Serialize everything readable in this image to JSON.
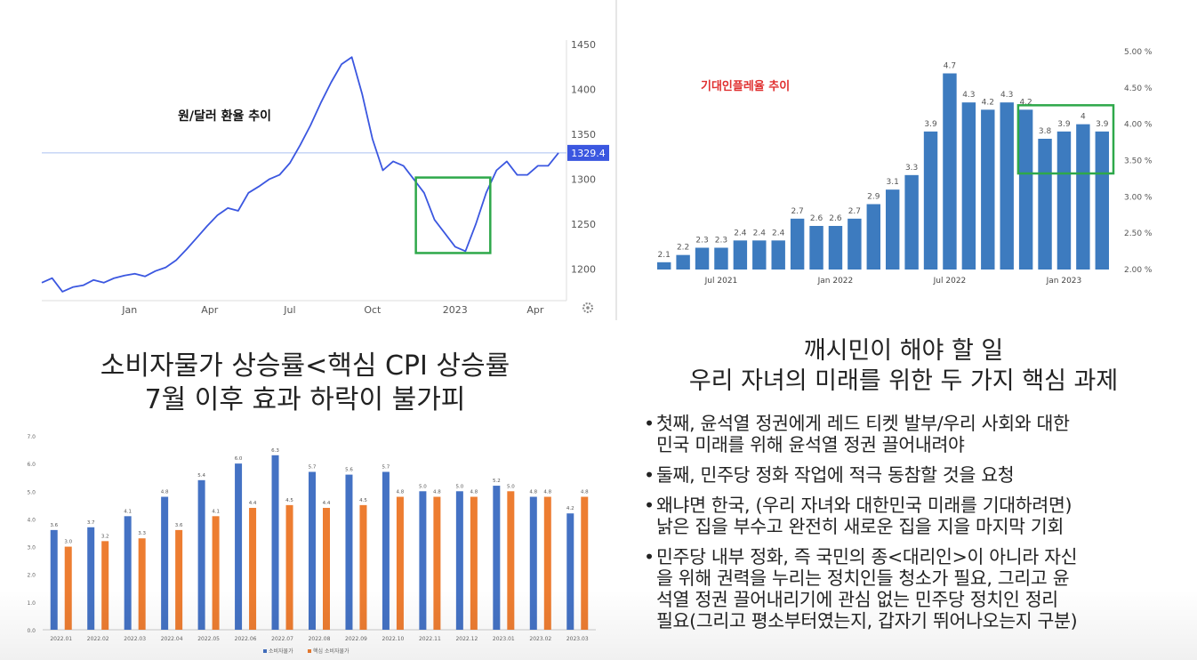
{
  "charts": [
    {
      "type": "line",
      "title": "원/달러 환율 추이",
      "x_ticks": [
        "Jan",
        "Apr",
        "Jul",
        "Oct",
        "2023",
        "Apr"
      ],
      "y_ticks": [
        1200,
        1250,
        1300,
        1350,
        1400,
        1450
      ],
      "ylim": [
        1165,
        1455
      ],
      "current_label": "1329.4",
      "current_value": 1329.4,
      "series_color": "#3b57e0",
      "highlight_color": "#2ea84a",
      "highlight_range": {
        "x": [
          0.724,
          0.868
        ],
        "y": [
          1218,
          1302
        ]
      },
      "chart_data": {
        "type": "line",
        "x": [
          0.0,
          0.02,
          0.04,
          0.06,
          0.08,
          0.1,
          0.12,
          0.14,
          0.16,
          0.18,
          0.2,
          0.22,
          0.24,
          0.26,
          0.28,
          0.3,
          0.32,
          0.34,
          0.36,
          0.38,
          0.4,
          0.42,
          0.44,
          0.46,
          0.48,
          0.5,
          0.52,
          0.54,
          0.56,
          0.58,
          0.6,
          0.62,
          0.64,
          0.66,
          0.68,
          0.7,
          0.72,
          0.74,
          0.76,
          0.78,
          0.8,
          0.82,
          0.84,
          0.86,
          0.88,
          0.9,
          0.92,
          0.94,
          0.96,
          0.98,
          1.0
        ],
        "values": [
          1185,
          1190,
          1175,
          1180,
          1182,
          1188,
          1185,
          1190,
          1193,
          1195,
          1192,
          1198,
          1202,
          1210,
          1222,
          1235,
          1248,
          1260,
          1268,
          1265,
          1285,
          1292,
          1300,
          1305,
          1318,
          1338,
          1360,
          1385,
          1408,
          1428,
          1436,
          1395,
          1345,
          1310,
          1320,
          1315,
          1300,
          1285,
          1255,
          1240,
          1225,
          1220,
          1250,
          1285,
          1310,
          1320,
          1305,
          1305,
          1315,
          1315,
          1329.4
        ]
      }
    },
    {
      "type": "bar",
      "title": "기대인플레율 추이",
      "x_ticks": [
        "Jul 2021",
        "Jan 2022",
        "Jul 2022",
        "Jan 2023"
      ],
      "y_ticks": [
        "2.00 %",
        "2.50 %",
        "3.00 %",
        "3.50 %",
        "4.00 %",
        "4.50 %",
        "5.00 %"
      ],
      "ylim": [
        2.0,
        5.0
      ],
      "bar_color": "#3d7bbf",
      "highlight_color": "#2ea84a",
      "highlight_from_index": 19,
      "chart_data": {
        "type": "bar",
        "values": [
          2.1,
          2.2,
          2.3,
          2.3,
          2.4,
          2.4,
          2.4,
          2.7,
          2.6,
          2.6,
          2.7,
          2.9,
          3.1,
          3.3,
          3.9,
          4.7,
          4.3,
          4.2,
          4.3,
          4.2,
          3.8,
          3.9,
          4,
          3.9
        ],
        "value_labels": [
          "2.1",
          "2.2",
          "2.3",
          "2.3",
          "2.4",
          "2.4",
          "2.4",
          "2.7",
          "2.6",
          "2.6",
          "2.7",
          "2.9",
          "3.1",
          "3.3",
          "3.9",
          "4.7",
          "4.3",
          "4.2",
          "4.3",
          "4.2",
          "3.8",
          "3.9",
          "4",
          "3.9"
        ]
      }
    },
    {
      "type": "bar",
      "title": "소비자물가 상승률<핵심 CPI 상승률 7월 이후 효과 하락이 불가피",
      "title_lines": [
        "소비자물가 상승률<핵심 CPI 상승률",
        "7월 이후 효과 하락이 불가피"
      ],
      "y_ticks": [
        "0.0",
        "1.0",
        "2.0",
        "3.0",
        "4.0",
        "5.0",
        "6.0",
        "7.0"
      ],
      "ylim": [
        0,
        7
      ],
      "chart_data": {
        "type": "bar",
        "categories": [
          "2022.01",
          "2022.02",
          "2022.03",
          "2022.04",
          "2022.05",
          "2022.06",
          "2022.07",
          "2022.08",
          "2022.09",
          "2022.10",
          "2022.11",
          "2022.12",
          "2023.01",
          "2023.02",
          "2023.03"
        ],
        "series": [
          {
            "name": "소비자물가",
            "color": "#4472c4",
            "values": [
              3.6,
              3.7,
              4.1,
              4.8,
              5.4,
              6.0,
              6.3,
              5.7,
              5.6,
              5.7,
              5.0,
              5.0,
              5.2,
              4.8,
              4.2
            ]
          },
          {
            "name": "핵심 소비자물가",
            "color": "#ed7d31",
            "values": [
              3.0,
              3.2,
              3.3,
              3.6,
              4.1,
              4.4,
              4.5,
              4.4,
              4.5,
              4.8,
              4.8,
              4.8,
              5.0,
              4.8,
              4.8
            ]
          }
        ]
      }
    }
  ],
  "text_panel": {
    "heading_lines": [
      "깨시민이 해야 할 일",
      "우리 자녀의 미래를 위한 두 가지 핵심 과제"
    ],
    "bullets": [
      [
        "첫째, 윤석열 정권에게 레드 티켓 발부/우리 사회와 대한",
        "민국 미래를 위해 윤석열 정권 끌어내려야"
      ],
      [
        "둘째, 민주당 정화 작업에 적극 동참할 것을 요청"
      ],
      [
        "왜냐면 한국, (우리 자녀와 대한민국 미래를 기대하려면)",
        "낡은 집을 부수고 완전히 새로운 집을 지을 마지막 기회"
      ],
      [
        "민주당 내부 정화, 즉 국민의 종<대리인>이 아니라 자신",
        "을 위해 권력을 누리는 정치인들 청소가 필요, 그리고 윤",
        "석열 정권 끌어내리기에 관심 없는 민주당 정치인 정리",
        "필요(그리고 평소부터였는지, 갑자기 뛰어나오는지 구분)"
      ]
    ]
  }
}
